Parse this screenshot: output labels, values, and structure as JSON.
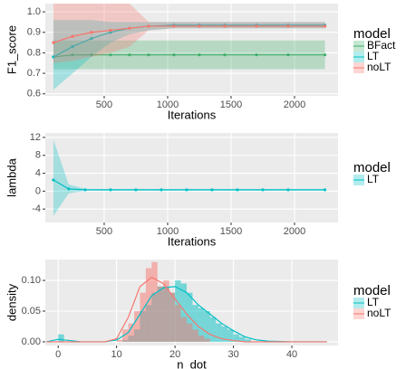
{
  "chart_data": [
    {
      "type": "line",
      "x_label": "Iterations",
      "y_label": "F1_score",
      "legend_title": "model",
      "xlim": [
        36,
        2343
      ],
      "xticks": [
        500,
        1000,
        1500,
        2000
      ],
      "ylim": [
        0.59,
        1.04
      ],
      "yticks": [
        0.6,
        0.7,
        0.8,
        0.9,
        {
          "value": 1,
          "label": "1.0"
        }
      ],
      "series": [
        {
          "name": "BFact",
          "color": "#3fae6a",
          "x": [
            100,
            250,
            400,
            550,
            700,
            850,
            1050,
            1250,
            1450,
            1700,
            1950,
            2240
          ],
          "values": [
            0.78,
            0.79,
            0.79,
            0.79,
            0.79,
            0.79,
            0.79,
            0.79,
            0.79,
            0.79,
            0.79,
            0.79
          ],
          "lower": [
            0.72,
            0.72,
            0.72,
            0.72,
            0.72,
            0.72,
            0.72,
            0.72,
            0.72,
            0.72,
            0.72,
            0.72
          ],
          "upper": [
            0.86,
            0.86,
            0.86,
            0.86,
            0.86,
            0.86,
            0.86,
            0.86,
            0.86,
            0.86,
            0.86,
            0.86
          ]
        },
        {
          "name": "LT",
          "color": "#00BFC4",
          "x": [
            100,
            250,
            400,
            550,
            700,
            850,
            1050,
            1250,
            1450,
            1700,
            1950,
            2240
          ],
          "values": [
            0.78,
            0.83,
            0.87,
            0.9,
            0.92,
            0.93,
            0.935,
            0.935,
            0.935,
            0.935,
            0.935,
            0.935
          ],
          "lower": [
            0.62,
            0.7,
            0.78,
            0.85,
            0.89,
            0.91,
            0.92,
            0.92,
            0.92,
            0.92,
            0.92,
            0.92
          ],
          "upper": [
            0.96,
            0.96,
            0.96,
            0.95,
            0.95,
            0.95,
            0.95,
            0.95,
            0.95,
            0.95,
            0.95,
            0.95
          ]
        },
        {
          "name": "noLT",
          "color": "#F8766D",
          "x": [
            100,
            250,
            400,
            550,
            700,
            850,
            1050,
            1250,
            1450,
            1700,
            1950,
            2240
          ],
          "values": [
            0.85,
            0.88,
            0.9,
            0.91,
            0.92,
            0.93,
            0.93,
            0.93,
            0.93,
            0.93,
            0.93,
            0.93
          ],
          "lower": [
            0.75,
            0.76,
            0.78,
            0.8,
            0.83,
            0.91,
            0.92,
            0.92,
            0.92,
            0.92,
            0.92,
            0.92
          ],
          "upper": [
            1.04,
            1.04,
            1.04,
            1.04,
            1.04,
            0.95,
            0.95,
            0.95,
            0.95,
            0.95,
            0.95,
            0.95
          ]
        }
      ]
    },
    {
      "type": "line",
      "x_label": "Iterations",
      "y_label": "lambda",
      "legend_title": "model",
      "xlim": [
        36,
        2343
      ],
      "xticks": [
        500,
        1000,
        1500,
        2000
      ],
      "ylim": [
        -7,
        13
      ],
      "yticks": [
        -4,
        0,
        4,
        8,
        12
      ],
      "series": [
        {
          "name": "LT",
          "color": "#00BFC4",
          "x": [
            100,
            220,
            350,
            550,
            750,
            950,
            1150,
            1350,
            1550,
            1750,
            1950,
            2240
          ],
          "values": [
            2.5,
            0.5,
            0.3,
            0.3,
            0.3,
            0.3,
            0.3,
            0.3,
            0.3,
            0.3,
            0.3,
            0.3
          ],
          "lower": [
            -5.5,
            -0.5,
            0.1,
            0.1,
            0.1,
            0.1,
            0.1,
            0.1,
            0.1,
            0.1,
            0.1,
            0.1
          ],
          "upper": [
            11.5,
            1.5,
            0.5,
            0.5,
            0.5,
            0.5,
            0.5,
            0.5,
            0.5,
            0.5,
            0.5,
            0.5
          ]
        }
      ]
    },
    {
      "type": "histogram",
      "x_label": "n_dot",
      "y_label": "density",
      "legend_title": "model",
      "xlim": [
        -2.2,
        47.9
      ],
      "xticks": [
        0,
        10,
        20,
        30,
        40
      ],
      "ylim": [
        -0.006,
        0.134
      ],
      "yticks": [
        {
          "value": 0,
          "label": "0.00"
        },
        {
          "value": 0.05,
          "label": "0.05"
        },
        {
          "value": 0.1,
          "label": "0.10"
        }
      ],
      "bins": [
        0,
        1,
        2,
        3,
        4,
        5,
        6,
        7,
        8,
        9,
        10,
        11,
        12,
        13,
        14,
        15,
        16,
        17,
        18,
        19,
        20,
        21,
        22,
        23,
        24,
        25,
        26,
        27,
        28,
        29,
        30,
        31,
        32,
        33,
        34
      ],
      "series": [
        {
          "name": "LT",
          "color": "#00BFC4",
          "values": [
            0.012,
            0,
            0,
            0,
            0,
            0,
            0,
            0,
            0,
            0,
            0,
            0.003,
            0.01,
            0.02,
            0.05,
            0.06,
            0.08,
            0.09,
            0.09,
            0.08,
            0.1,
            0.095,
            0.08,
            0.06,
            0.055,
            0.05,
            0.04,
            0.03,
            0.025,
            0.02,
            0.012,
            0.008,
            0.004,
            0
          ],
          "density_x": [
            -2,
            0,
            2,
            4,
            6,
            8,
            10,
            12,
            14,
            16,
            18,
            20,
            22,
            24,
            26,
            28,
            30,
            32,
            34,
            36,
            40,
            46
          ],
          "density": [
            0,
            0.004,
            0.002,
            0,
            0,
            0,
            0.003,
            0.015,
            0.045,
            0.075,
            0.088,
            0.09,
            0.08,
            0.06,
            0.045,
            0.03,
            0.018,
            0.008,
            0.003,
            0.001,
            0,
            0
          ]
        },
        {
          "name": "noLT",
          "color": "#F8766D",
          "values": [
            0,
            0,
            0,
            0,
            0,
            0,
            0,
            0,
            0,
            0,
            0.003,
            0.02,
            0.03,
            0.05,
            0.08,
            0.12,
            0.13,
            0.09,
            0.1,
            0.08,
            0.06,
            0.04,
            0.03,
            0.02,
            0.01,
            0.005,
            0,
            0,
            0,
            0,
            0,
            0,
            0,
            0
          ],
          "density_x": [
            -2,
            0,
            2,
            4,
            6,
            8,
            10,
            12,
            14,
            16,
            18,
            20,
            22,
            24,
            26,
            28,
            30,
            32,
            34,
            36,
            40,
            46
          ],
          "density": [
            0,
            0,
            0,
            0,
            0,
            0,
            0.005,
            0.04,
            0.09,
            0.105,
            0.095,
            0.07,
            0.045,
            0.025,
            0.012,
            0.005,
            0.002,
            0,
            0,
            0,
            0,
            0
          ]
        }
      ]
    }
  ]
}
